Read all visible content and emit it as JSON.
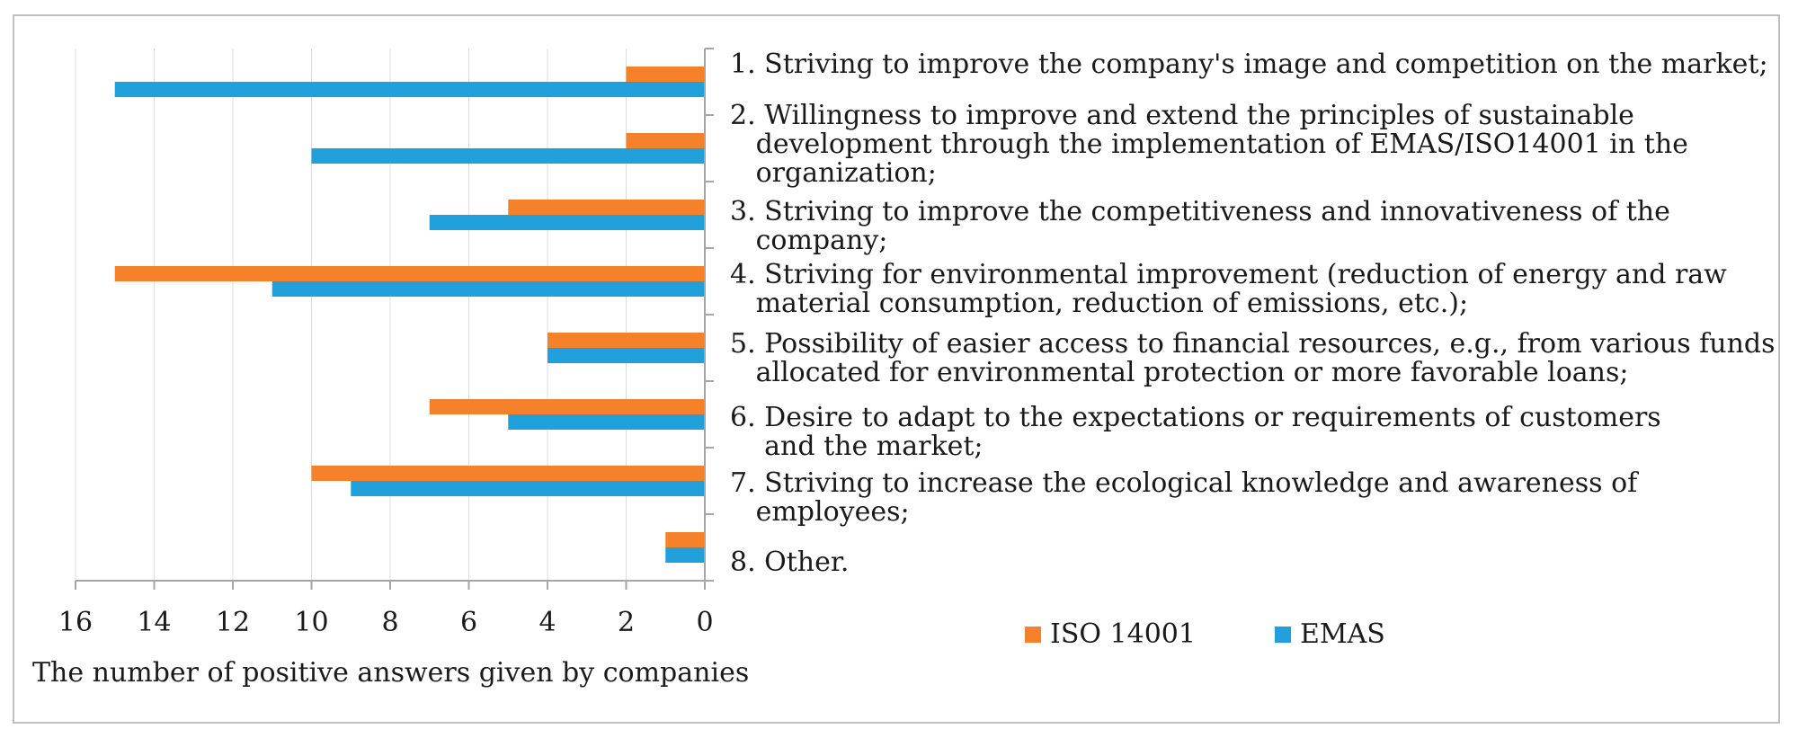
{
  "chart_data": {
    "type": "bar",
    "orientation": "horizontal",
    "x_direction": "reversed",
    "categories": [
      "1. Striving to improve the company's image and competition on the market;",
      "2. Willingness to improve and extend the principles of sustainable\n   development through the implementation of EMAS/ISO14001 in the\n   organization;",
      "3. Striving to improve the competitiveness and innovativeness of the\n   company;",
      "4. Striving for environmental improvement (reduction of energy and raw\n   material consumption, reduction of emissions, etc.);",
      "5. Possibility of easier access to financial resources, e.g., from various funds\n   allocated for environmental protection or more favorable loans;",
      "6. Desire to adapt to the expectations or requirements of customers\n    and the market;",
      "7. Striving to increase the ecological knowledge and awareness of\n   employees;",
      "8. Other."
    ],
    "series": [
      {
        "name": "ISO 14001",
        "color": "#f5822a",
        "values": [
          2,
          2,
          5,
          15,
          4,
          7,
          10,
          1
        ]
      },
      {
        "name": "EMAS",
        "color": "#22a0dc",
        "values": [
          15,
          10,
          7,
          11,
          4,
          5,
          9,
          1
        ]
      }
    ],
    "xlim": [
      0,
      16
    ],
    "ticks": [
      "16",
      "14",
      "12",
      "10",
      "8",
      "6",
      "4",
      "2",
      "0"
    ],
    "xlabel": "The number of positive answers given by companies",
    "ylabel": "",
    "grid": true,
    "legend": "bottom"
  }
}
